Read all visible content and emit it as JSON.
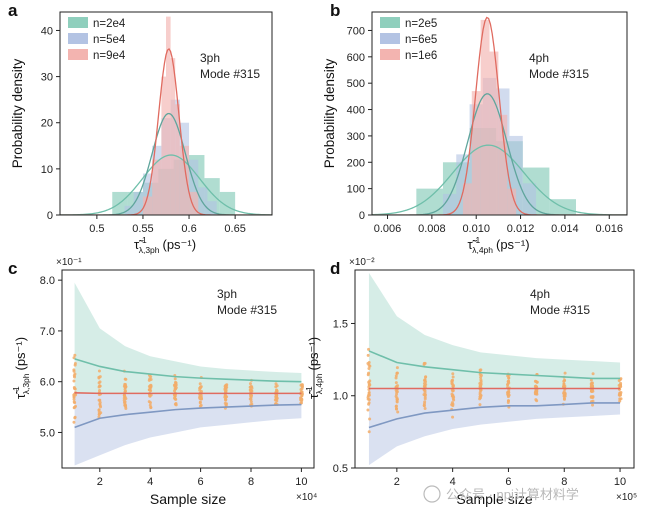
{
  "panels": [
    {
      "letter": "a",
      "type": "histogram",
      "annotation": [
        "3ph",
        "Mode #315"
      ],
      "ylabel": "Probability density",
      "xlabel_main": "τ̃",
      "xlabel_sup": "-1",
      "xlabel_sub": "λ,3ph",
      "xlabel_unit": "(ps⁻¹)",
      "xlim": [
        0.46,
        0.69
      ],
      "ylim": [
        0,
        44
      ],
      "xticks": [
        0.5,
        0.55,
        0.6,
        0.65
      ],
      "xtick_labels": [
        "0.5",
        "0.55",
        "0.6",
        "0.65"
      ],
      "yticks": [
        0,
        10,
        20,
        30,
        40
      ],
      "ytick_labels": [
        "0",
        "10",
        "20",
        "30",
        "40"
      ],
      "legend": [
        {
          "label": "n=2e4",
          "color": "#8fcfbd"
        },
        {
          "label": "n=5e4",
          "color": "#b3c3e3"
        },
        {
          "label": "n=9e4",
          "color": "#f3b4b0"
        }
      ],
      "series": [
        {
          "name": "n=2e4",
          "color": "#8fcfbd",
          "opacity": 0.7,
          "bins": {
            "edges": [
              0.5167,
              0.5333,
              0.55,
              0.5667,
              0.5833,
              0.6,
              0.6167,
              0.6333,
              0.65
            ],
            "heights": [
              5,
              5,
              7,
              10,
              12,
              13,
              8,
              5
            ]
          },
          "curve": {
            "mu": 0.5805,
            "sigma": 0.031,
            "peak": 13
          }
        },
        {
          "name": "n=5e4",
          "color": "#b3c3e3",
          "opacity": 0.6,
          "bins": {
            "edges": [
              0.53,
              0.54,
              0.55,
              0.56,
              0.57,
              0.58,
              0.59,
              0.6,
              0.61,
              0.62,
              0.63
            ],
            "heights": [
              2,
              5,
              9,
              15,
              21,
              25,
              20,
              12,
              6,
              3
            ]
          },
          "curve": {
            "mu": 0.578,
            "sigma": 0.018,
            "peak": 22
          }
        },
        {
          "name": "n=9e4",
          "color": "#f3b4b0",
          "opacity": 0.65,
          "bins": {
            "edges": [
              0.55,
              0.56,
              0.57,
              0.575,
              0.58,
              0.585,
              0.59,
              0.6,
              0.61
            ],
            "heights": [
              4,
              12,
              30,
              43,
              34,
              24,
              15,
              5
            ]
          },
          "curve": {
            "mu": 0.578,
            "sigma": 0.011,
            "peak": 36
          }
        }
      ]
    },
    {
      "letter": "b",
      "type": "histogram",
      "annotation": [
        "4ph",
        "Mode #315"
      ],
      "ylabel": "Probability density",
      "xlabel_main": "τ̃",
      "xlabel_sup": "-1",
      "xlabel_sub": "λ,4ph",
      "xlabel_unit": "(ps⁻¹)",
      "xlim": [
        0.0053,
        0.0168
      ],
      "ylim": [
        0,
        770
      ],
      "xticks": [
        0.006,
        0.008,
        0.01,
        0.012,
        0.014,
        0.016
      ],
      "xtick_labels": [
        "0.006",
        "0.008",
        "0.010",
        "0.012",
        "0.014",
        "0.016"
      ],
      "yticks": [
        0,
        100,
        200,
        300,
        400,
        500,
        600,
        700
      ],
      "ytick_labels": [
        "0",
        "100",
        "200",
        "300",
        "400",
        "500",
        "600",
        "700"
      ],
      "legend": [
        {
          "label": "n=2e5",
          "color": "#8fcfbd"
        },
        {
          "label": "n=6e5",
          "color": "#b3c3e3"
        },
        {
          "label": "n=1e6",
          "color": "#f3b4b0"
        }
      ],
      "series": [
        {
          "name": "n=2e5",
          "color": "#8fcfbd",
          "opacity": 0.7,
          "bins": {
            "edges": [
              0.0073,
              0.0085,
              0.0097,
              0.0109,
              0.0121,
              0.0133,
              0.0145
            ],
            "heights": [
              100,
              200,
              330,
              280,
              180,
              60
            ]
          },
          "curve": {
            "mu": 0.01055,
            "sigma": 0.0016,
            "peak": 265
          }
        },
        {
          "name": "n=6e5",
          "color": "#b3c3e3",
          "opacity": 0.6,
          "bins": {
            "edges": [
              0.0085,
              0.0091,
              0.0097,
              0.0103,
              0.0109,
              0.0115,
              0.0121,
              0.0127
            ],
            "heights": [
              80,
              230,
              420,
              520,
              480,
              300,
              120
            ]
          },
          "curve": {
            "mu": 0.0105,
            "sigma": 0.00088,
            "peak": 460
          }
        },
        {
          "name": "n=1e6",
          "color": "#f3b4b0",
          "opacity": 0.65,
          "bins": {
            "edges": [
              0.0094,
              0.0098,
              0.0102,
              0.0106,
              0.011,
              0.0114,
              0.0118
            ],
            "heights": [
              120,
              470,
              740,
              620,
              380,
              100
            ]
          },
          "curve": {
            "mu": 0.0105,
            "sigma": 0.00053,
            "peak": 750
          }
        }
      ]
    },
    {
      "letter": "c",
      "type": "convergence",
      "annotation": [
        "3ph",
        "Mode #315"
      ],
      "multiplier": "×10⁻¹",
      "xlabel": "Sample size",
      "x_multiplier": "×10⁴",
      "ylabel_main": "τ̃",
      "ylabel_sup": "-1",
      "ylabel_sub": "λ,3ph",
      "ylabel_unit": "(ps⁻¹)",
      "xlim": [
        0.5,
        10.5
      ],
      "ylim": [
        4.3,
        8.2
      ],
      "xticks": [
        2,
        4,
        6,
        8,
        10
      ],
      "xtick_labels": [
        "2",
        "4",
        "6",
        "8",
        "10"
      ],
      "yticks": [
        5.0,
        6.0,
        7.0,
        8.0
      ],
      "ytick_labels": [
        "5.0",
        "6.0",
        "7.0",
        "8.0"
      ],
      "x": [
        1,
        2,
        3,
        4,
        5,
        6,
        7,
        8,
        9,
        10
      ],
      "mean": [
        5.78,
        5.77,
        5.77,
        5.77,
        5.77,
        5.77,
        5.77,
        5.77,
        5.77,
        5.77
      ],
      "upper_line": [
        6.45,
        6.3,
        6.2,
        6.15,
        6.1,
        6.07,
        6.05,
        6.03,
        6.01,
        6.0
      ],
      "lower_line": [
        5.1,
        5.28,
        5.35,
        5.4,
        5.45,
        5.48,
        5.5,
        5.52,
        5.54,
        5.55
      ],
      "band_upper": [
        7.95,
        7.05,
        6.7,
        6.5,
        6.4,
        6.3,
        6.25,
        6.22,
        6.19,
        6.17
      ],
      "band_lower": [
        4.35,
        4.55,
        4.75,
        4.9,
        5.0,
        5.1,
        5.15,
        5.2,
        5.25,
        5.28
      ],
      "dots_spread": [
        0.72,
        0.55,
        0.45,
        0.38,
        0.33,
        0.3,
        0.28,
        0.26,
        0.24,
        0.23
      ],
      "colors": {
        "upper": "#6fbfaa",
        "lower": "#7f98c2",
        "mean": "#e06b60",
        "dots": "#f2ad6a",
        "band_upper": "#cfeae3",
        "band_lower": "#d3dcef"
      }
    },
    {
      "letter": "d",
      "type": "convergence",
      "annotation": [
        "4ph",
        "Mode #315"
      ],
      "multiplier": "×10⁻²",
      "xlabel": "Sample size",
      "x_multiplier": "×10⁵",
      "ylabel_main": "τ̃",
      "ylabel_sup": "-1",
      "ylabel_sub": "λ,4ph",
      "ylabel_unit": "(ps⁻¹)",
      "xlim": [
        0.5,
        10.5
      ],
      "ylim": [
        0.5,
        1.87
      ],
      "xticks": [
        2,
        4,
        6,
        8,
        10
      ],
      "xtick_labels": [
        "2",
        "4",
        "6",
        "8",
        "10"
      ],
      "yticks": [
        0.5,
        1.0,
        1.5
      ],
      "ytick_labels": [
        "0.5",
        "1.0",
        "1.5"
      ],
      "x": [
        1,
        2,
        3,
        4,
        5,
        6,
        7,
        8,
        9,
        10
      ],
      "mean": [
        1.05,
        1.05,
        1.05,
        1.05,
        1.05,
        1.05,
        1.05,
        1.05,
        1.05,
        1.05
      ],
      "upper_line": [
        1.31,
        1.23,
        1.2,
        1.18,
        1.16,
        1.15,
        1.14,
        1.13,
        1.12,
        1.12
      ],
      "lower_line": [
        0.78,
        0.84,
        0.88,
        0.9,
        0.92,
        0.93,
        0.93,
        0.94,
        0.95,
        0.95
      ],
      "band_upper": [
        1.85,
        1.55,
        1.42,
        1.35,
        1.3,
        1.28,
        1.26,
        1.25,
        1.24,
        1.23
      ],
      "band_lower": [
        0.52,
        0.65,
        0.72,
        0.77,
        0.8,
        0.82,
        0.84,
        0.85,
        0.86,
        0.87
      ],
      "dots_spread": [
        0.3,
        0.22,
        0.18,
        0.16,
        0.14,
        0.13,
        0.12,
        0.11,
        0.1,
        0.1
      ],
      "colors": {
        "upper": "#6fbfaa",
        "lower": "#7f98c2",
        "mean": "#e06b60",
        "dots": "#f2ad6a",
        "band_upper": "#cfeae3",
        "band_lower": "#d3dcef"
      }
    }
  ],
  "watermark": "公众号 · npj计算材料学"
}
